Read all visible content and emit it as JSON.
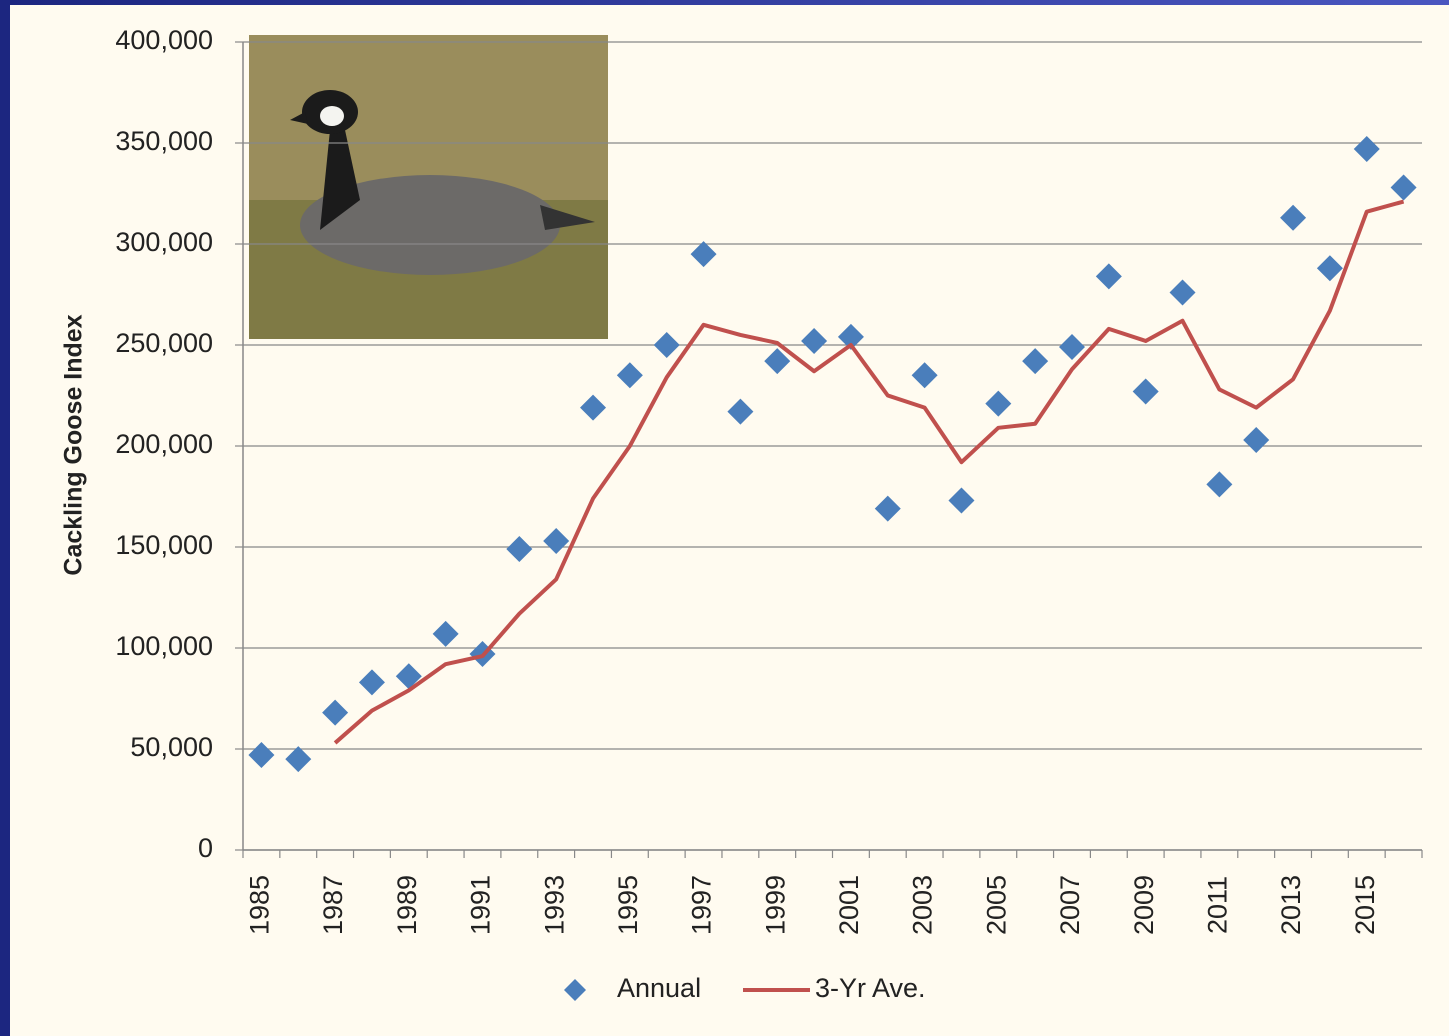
{
  "chart_data": {
    "type": "line",
    "y_label": "Cackling Goose Index",
    "categories": [
      "1985",
      null,
      "1987",
      null,
      "1989",
      null,
      "1991",
      null,
      "1993",
      null,
      "1995",
      null,
      "1997",
      null,
      "1999",
      null,
      "2001",
      null,
      "2003",
      null,
      "2005",
      null,
      "2007",
      null,
      "2009",
      null,
      "2011",
      null,
      "2013",
      null,
      "2015",
      null
    ],
    "series": [
      {
        "name": "Annual",
        "color": "#4a7ebb",
        "style": "markers",
        "values": [
          47000,
          45000,
          68000,
          83000,
          86000,
          107000,
          97000,
          149000,
          153000,
          219000,
          235000,
          250000,
          295000,
          217000,
          242000,
          252000,
          254000,
          169000,
          235000,
          173000,
          221000,
          242000,
          249000,
          284000,
          227000,
          276000,
          181000,
          203000,
          313000,
          288000,
          347000,
          328000
        ]
      },
      {
        "name": "3-Yr Ave.",
        "color": "#c0504d",
        "style": "line",
        "values": [
          null,
          null,
          53000,
          69000,
          79000,
          92000,
          96000,
          117000,
          134000,
          174000,
          200000,
          234000,
          260000,
          255000,
          251000,
          237000,
          250000,
          225000,
          219000,
          192000,
          209000,
          211000,
          238000,
          258000,
          252000,
          262000,
          228000,
          219000,
          233000,
          267000,
          316000,
          321000
        ]
      }
    ],
    "ylim": [
      0,
      400000
    ],
    "yticks": [
      0,
      {
        "value": 50000,
        "label": "50,000"
      },
      {
        "value": 100000,
        "label": "100,000"
      },
      {
        "value": 150000,
        "label": "150,000"
      },
      {
        "value": 200000,
        "label": "200,000"
      },
      {
        "value": 250000,
        "label": "250,000"
      },
      {
        "value": 300000,
        "label": "300,000"
      },
      {
        "value": 350000,
        "label": "350,000"
      },
      {
        "value": 400000,
        "label": "400,000"
      }
    ],
    "grid": true
  }
}
